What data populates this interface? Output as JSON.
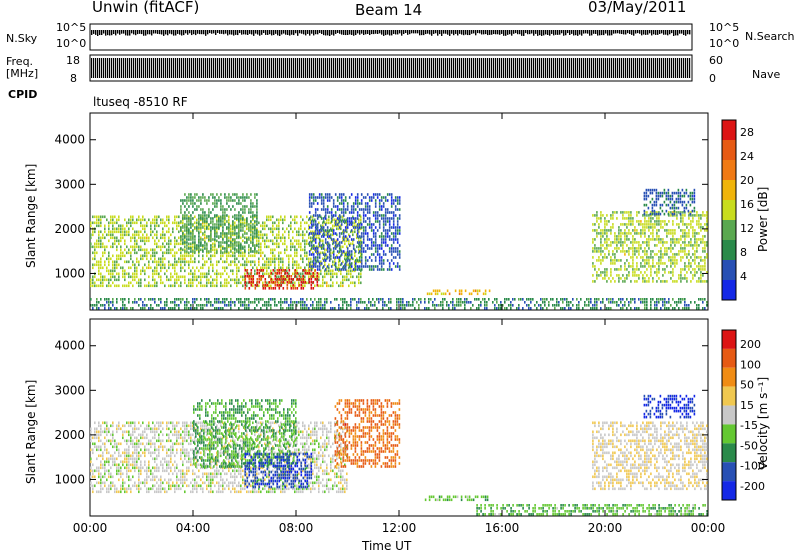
{
  "header": {
    "station": "Unwin (fitACF)",
    "beam": "Beam 14",
    "date": "03/May/2011"
  },
  "strip_labels": {
    "nsky": "N.Sky",
    "nsky_ticks": [
      "10^5",
      "10^0"
    ],
    "nsearch": "N.Search",
    "nsearch_ticks": [
      "10^5",
      "10^0"
    ],
    "freq_line1": "Freq.",
    "freq_line2": "[MHz]",
    "freq_ticks": [
      "18",
      "8"
    ],
    "nave": "Nave",
    "nave_ticks": [
      "60",
      "0"
    ],
    "cpid": "CPID",
    "cpid_value": "ltuseq -8510 RF"
  },
  "colors": {
    "power_scale": [
      "#1428e6",
      "#2850b4",
      "#2a8a4a",
      "#5aa850",
      "#c8dc1e",
      "#f0b40a",
      "#f07a14",
      "#e65a14",
      "#dc1414"
    ],
    "velocity_scale": [
      "#1428e6",
      "#2850b4",
      "#2a8a4a",
      "#64c832",
      "#c8c8c8",
      "#f0c850",
      "#f08c14",
      "#e65a14",
      "#dc1414"
    ]
  },
  "chart_data": [
    {
      "type": "heatmap",
      "panel": "power",
      "ylabel": "Slant Range [km]",
      "xlabel": "Time UT",
      "x_ticks": [
        "00:00",
        "04:00",
        "08:00",
        "12:00",
        "16:00",
        "20:00",
        "00:00"
      ],
      "xlim_hours": [
        0,
        24
      ],
      "y_ticks": [
        "1000",
        "2000",
        "3000",
        "4000"
      ],
      "ylim_km": [
        180,
        4600
      ],
      "colorbar_label": "Power [dB]",
      "colorbar_ticks": [
        "4",
        "8",
        "12",
        "16",
        "20",
        "24",
        "28"
      ],
      "colorbar_range": [
        0,
        30
      ],
      "regions": [
        {
          "t0": 0.0,
          "t1": 10.5,
          "r0": 700,
          "r1": 2300,
          "value": 14
        },
        {
          "t0": 3.5,
          "t1": 6.5,
          "r0": 1500,
          "r1": 2800,
          "value": 10
        },
        {
          "t0": 6.0,
          "t1": 8.8,
          "r0": 650,
          "r1": 1100,
          "value": 28
        },
        {
          "t0": 8.5,
          "t1": 12.0,
          "r0": 1100,
          "r1": 2800,
          "value": 5
        },
        {
          "t0": 13.0,
          "t1": 15.5,
          "r0": 560,
          "r1": 640,
          "value": 18
        },
        {
          "t0": 19.5,
          "t1": 24.0,
          "r0": 800,
          "r1": 2400,
          "value": 14
        },
        {
          "t0": 21.5,
          "t1": 23.5,
          "r0": 2300,
          "r1": 2900,
          "value": 6
        },
        {
          "t0": 0.0,
          "t1": 24.0,
          "r0": 200,
          "r1": 450,
          "value": 8
        }
      ]
    },
    {
      "type": "heatmap",
      "panel": "velocity",
      "ylabel": "Slant Range [km]",
      "xlabel": "Time UT",
      "x_ticks": [
        "00:00",
        "04:00",
        "08:00",
        "12:00",
        "16:00",
        "20:00",
        "00:00"
      ],
      "xlim_hours": [
        0,
        24
      ],
      "y_ticks": [
        "1000",
        "2000",
        "3000",
        "4000"
      ],
      "ylim_km": [
        180,
        4600
      ],
      "colorbar_label": "Velocity [m s⁻¹]",
      "colorbar_ticks": [
        "200",
        "100",
        "50",
        "15",
        "-15",
        "-50",
        "-100",
        "-200"
      ],
      "colorbar_range": [
        -250,
        250
      ],
      "regions": [
        {
          "t0": 0.0,
          "t1": 10.0,
          "r0": 700,
          "r1": 2300,
          "value": 0
        },
        {
          "t0": 4.0,
          "t1": 8.0,
          "r0": 1300,
          "r1": 2800,
          "value": -80
        },
        {
          "t0": 6.0,
          "t1": 8.6,
          "r0": 800,
          "r1": 1600,
          "value": -180
        },
        {
          "t0": 9.5,
          "t1": 12.0,
          "r0": 1300,
          "r1": 2800,
          "value": 150
        },
        {
          "t0": 13.0,
          "t1": 15.5,
          "r0": 560,
          "r1": 640,
          "value": -60
        },
        {
          "t0": 15.0,
          "t1": 24.0,
          "r0": 200,
          "r1": 450,
          "value": -70
        },
        {
          "t0": 19.5,
          "t1": 24.0,
          "r0": 800,
          "r1": 2300,
          "value": 20
        },
        {
          "t0": 21.5,
          "t1": 23.5,
          "r0": 2400,
          "r1": 2900,
          "value": -200
        }
      ]
    }
  ]
}
